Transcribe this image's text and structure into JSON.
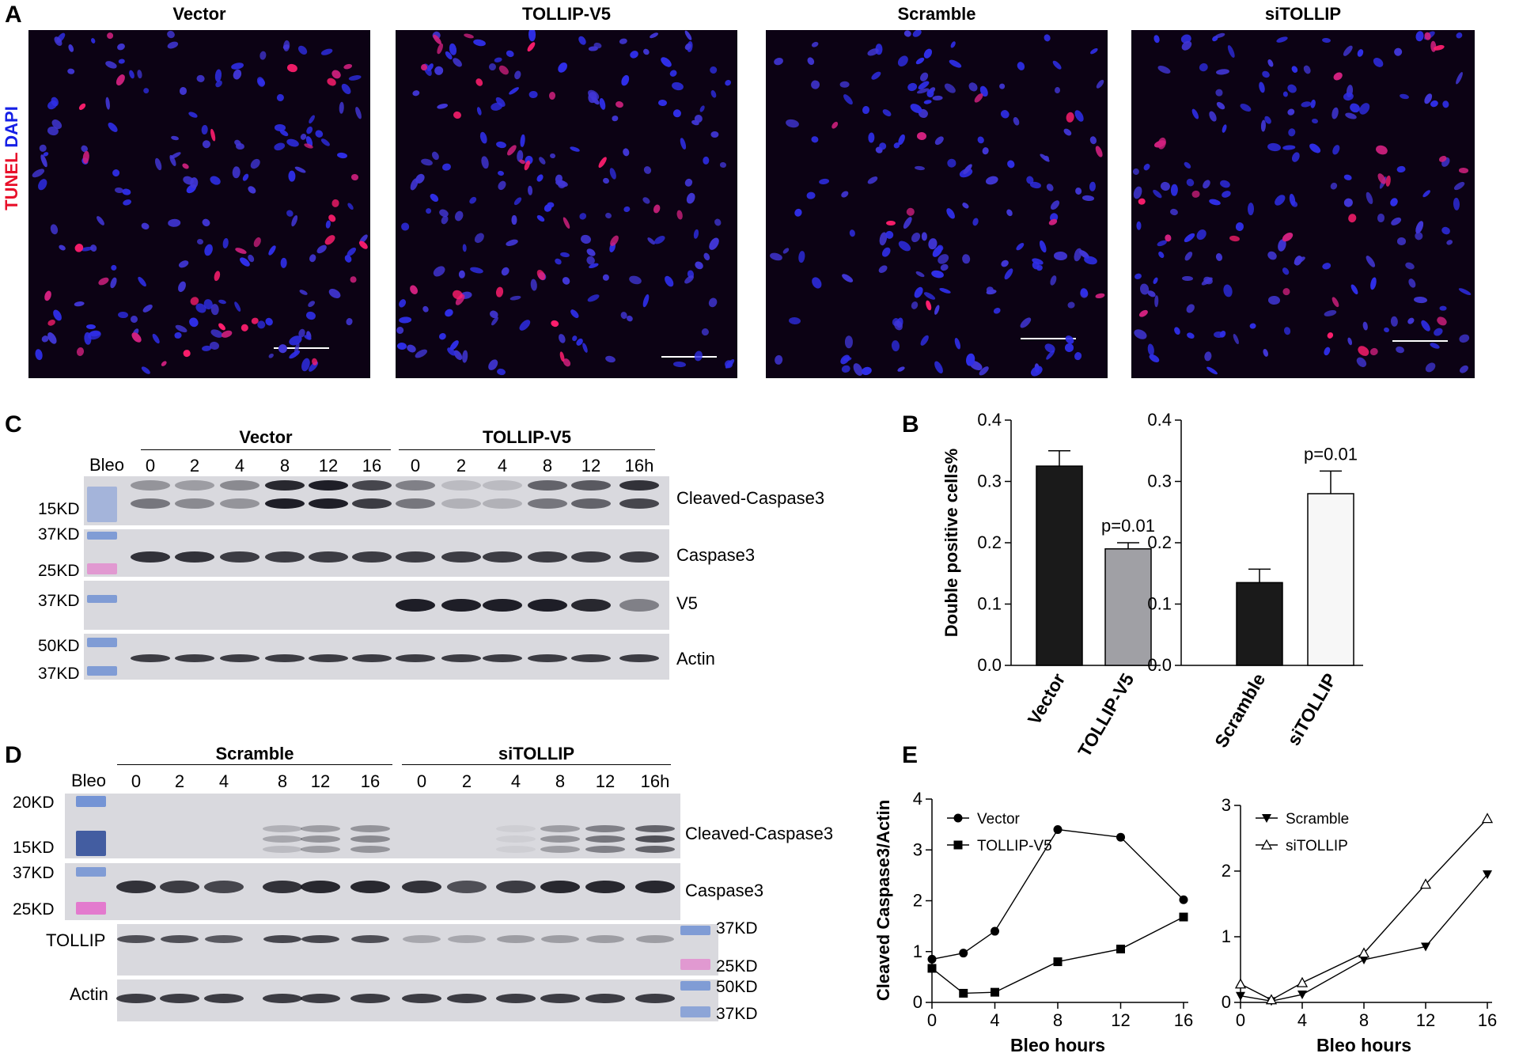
{
  "panel_labels": {
    "a": "A",
    "b": "B",
    "c": "C",
    "d": "D",
    "e": "E"
  },
  "panel_a": {
    "row_label_tunel": "TUNEL",
    "row_label_dapi": "DAPI",
    "images": [
      {
        "title": "Vector"
      },
      {
        "title": "TOLLIP-V5"
      },
      {
        "title": "Scramble"
      },
      {
        "title": "siTOLLIP"
      }
    ]
  },
  "blot_c": {
    "bleo": "Bleo",
    "groups": [
      "Vector",
      "TOLLIP-V5"
    ],
    "lanes": [
      "0",
      "2",
      "4",
      "8",
      "12",
      "16",
      "0",
      "2",
      "4",
      "8",
      "12",
      "16h"
    ],
    "proteins": [
      "Cleaved-Caspase3",
      "Caspase3",
      "V5",
      "Actin"
    ],
    "markers": {
      "m15": "15KD",
      "m37a": "37KD",
      "m25": "25KD",
      "m37b": "37KD",
      "m50": "50KD",
      "m37c": "37KD"
    }
  },
  "blot_d": {
    "bleo": "Bleo",
    "groups": [
      "Scramble",
      "siTOLLIP"
    ],
    "lanes": [
      "0",
      "2",
      "4",
      "8",
      "12",
      "16",
      "0",
      "2",
      "4",
      "8",
      "12",
      "16h"
    ],
    "proteins": [
      "Cleaved-Caspase3",
      "Caspase3",
      "TOLLIP",
      "Actin"
    ],
    "markers": {
      "m20": "20KD",
      "m15": "15KD",
      "m37a": "37KD",
      "m25a": "25KD",
      "m37b": "37KD",
      "m25b": "25KD",
      "m50": "50KD",
      "m37c": "37KD"
    }
  },
  "chart_data": [
    {
      "type": "bar",
      "panel": "B-left",
      "categories": [
        "Vector",
        "TOLLIP-V5"
      ],
      "values": [
        0.325,
        0.19
      ],
      "errors": [
        0.025,
        0.01
      ],
      "colors": [
        "#1a1a1a",
        "#a0a0a5"
      ],
      "annotations": [
        "",
        "p=0.01"
      ],
      "ylabel": "Double positive cells%",
      "ylim": [
        0,
        0.4
      ],
      "yticks": [
        "0.0",
        "0.1",
        "0.2",
        "0.3",
        "0.4"
      ]
    },
    {
      "type": "bar",
      "panel": "B-right",
      "categories": [
        "Scramble",
        "siTOLLIP"
      ],
      "values": [
        0.135,
        0.28
      ],
      "errors": [
        0.022,
        0.037
      ],
      "colors": [
        "#1a1a1a",
        "#f7f7f7"
      ],
      "annotations": [
        "",
        "p=0.01"
      ],
      "ylim": [
        0,
        0.4
      ],
      "yticks": [
        "0.0",
        "0.1",
        "0.2",
        "0.3",
        "0.4"
      ]
    },
    {
      "type": "line",
      "panel": "E-left",
      "x": [
        0,
        2,
        4,
        8,
        12,
        16
      ],
      "series": [
        {
          "name": "Vector",
          "marker": "circle",
          "values": [
            0.85,
            0.97,
            1.4,
            3.4,
            3.25,
            2.02
          ]
        },
        {
          "name": "TOLLIP-V5",
          "marker": "square",
          "values": [
            0.67,
            0.18,
            0.2,
            0.8,
            1.05,
            1.68
          ]
        }
      ],
      "xlabel": "Bleo hours",
      "ylabel": "Cleaved Caspase3/Actin",
      "xlim": [
        0,
        16
      ],
      "ylim": [
        0,
        4
      ],
      "xticks": [
        "0",
        "4",
        "8",
        "12",
        "16"
      ],
      "yticks": [
        "0",
        "1",
        "2",
        "3",
        "4"
      ]
    },
    {
      "type": "line",
      "panel": "E-right",
      "x": [
        0,
        2,
        4,
        8,
        12,
        16
      ],
      "series": [
        {
          "name": "Scramble",
          "marker": "triangle-down",
          "values": [
            0.1,
            0.02,
            0.12,
            0.65,
            0.85,
            1.95
          ]
        },
        {
          "name": "siTOLLIP",
          "marker": "triangle-up-open",
          "values": [
            0.28,
            0.04,
            0.3,
            0.75,
            1.8,
            2.8
          ]
        }
      ],
      "xlabel": "Bleo hours",
      "xlim": [
        0,
        16
      ],
      "ylim": [
        0,
        3
      ],
      "xticks": [
        "0",
        "4",
        "8",
        "12",
        "16"
      ],
      "yticks": [
        "0",
        "1",
        "2",
        "3"
      ]
    }
  ]
}
